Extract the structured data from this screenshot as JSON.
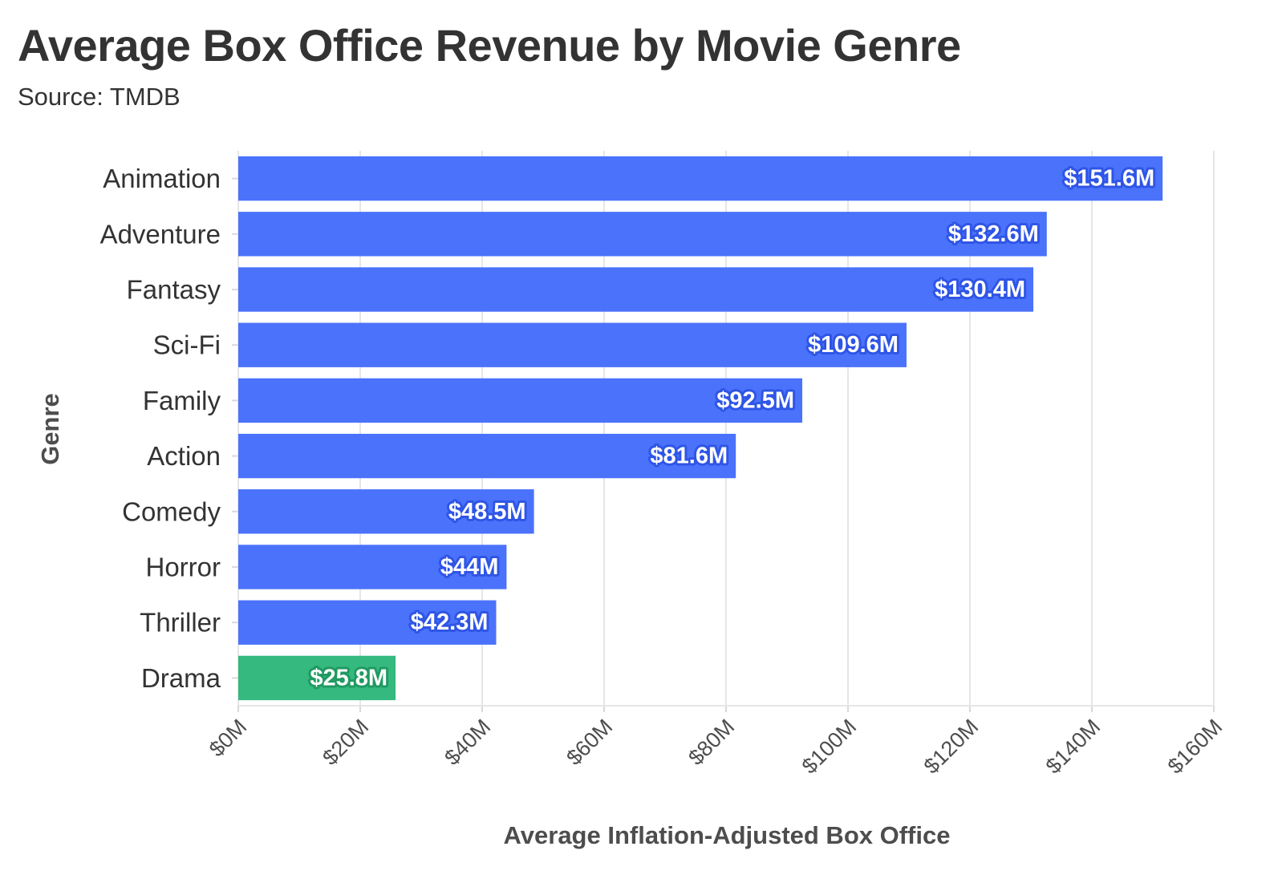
{
  "chart_data": {
    "type": "bar",
    "orientation": "horizontal",
    "title": "Average Box Office Revenue by Movie Genre",
    "subtitle": "Source: TMDB",
    "xlabel": "Average Inflation-Adjusted Box Office",
    "ylabel": "Genre",
    "categories": [
      "Animation",
      "Adventure",
      "Fantasy",
      "Sci-Fi",
      "Family",
      "Action",
      "Comedy",
      "Horror",
      "Thriller",
      "Drama"
    ],
    "values": [
      151.6,
      132.6,
      130.4,
      109.6,
      92.5,
      81.6,
      48.5,
      44.0,
      42.3,
      25.8
    ],
    "value_labels": [
      "$151.6M",
      "$132.6M",
      "$130.4M",
      "$109.6M",
      "$92.5M",
      "$81.6M",
      "$48.5M",
      "$44M",
      "$42.3M",
      "$25.8M"
    ],
    "highlighted": [
      false,
      false,
      false,
      false,
      false,
      false,
      false,
      false,
      false,
      true
    ],
    "xlim": [
      0,
      160
    ],
    "xticks": [
      0,
      20,
      40,
      60,
      80,
      100,
      120,
      140,
      160
    ],
    "xtick_labels": [
      "$0M",
      "$20M",
      "$40M",
      "$60M",
      "$80M",
      "$100M",
      "$120M",
      "$140M",
      "$160M"
    ],
    "units": "millions USD",
    "grid": true,
    "colors": {
      "bar": "#4a72fb",
      "bar_label_stroke": "#2f55e6",
      "highlight": "#35b97e",
      "highlight_label_stroke": "#1f9a62"
    }
  }
}
